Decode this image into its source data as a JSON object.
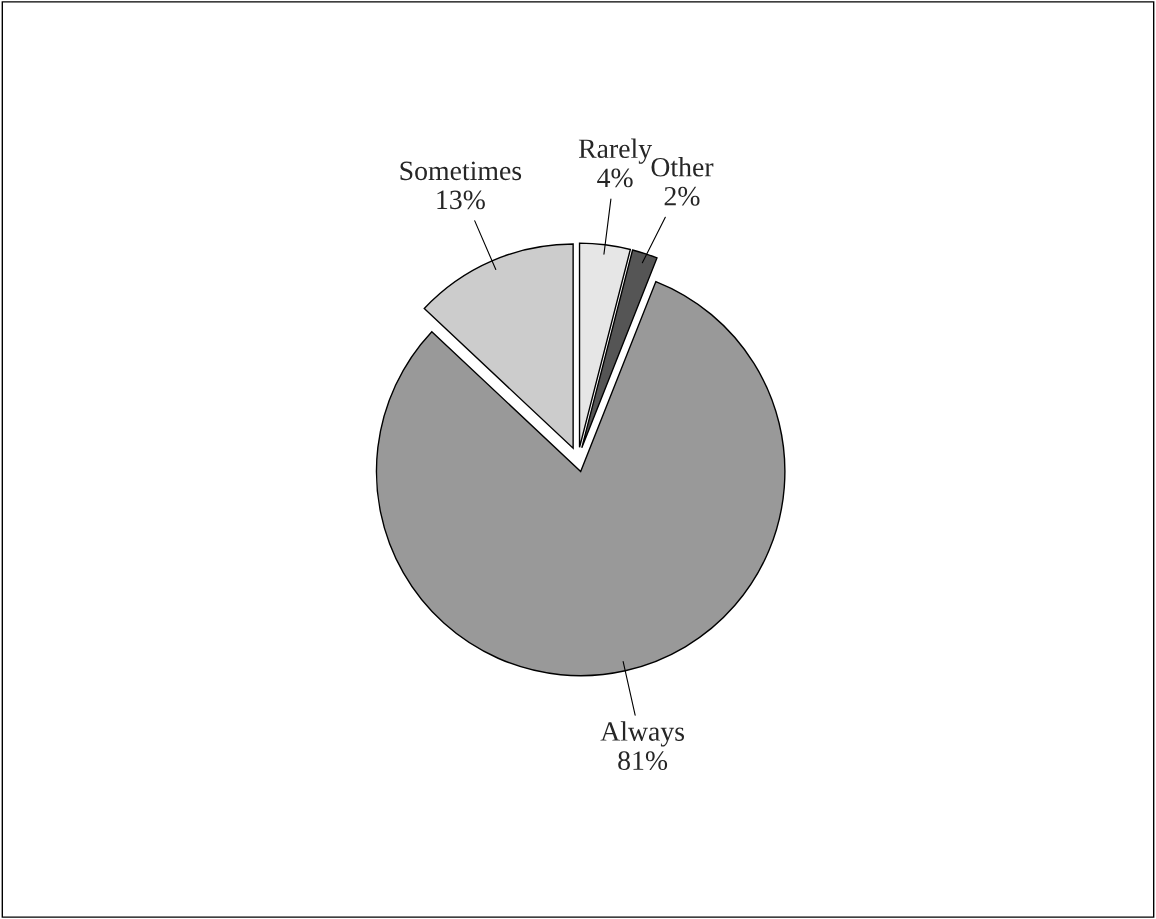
{
  "chart_data": {
    "type": "pie",
    "categories": [
      "Rarely",
      "Other",
      "Always",
      "Sometimes"
    ],
    "values": [
      4,
      2,
      81,
      13
    ],
    "value_labels": [
      "4%",
      "2%",
      "81%",
      "13%"
    ],
    "colors": [
      "#e6e6e6",
      "#555555",
      "#999999",
      "#cccccc"
    ],
    "legend": false
  }
}
